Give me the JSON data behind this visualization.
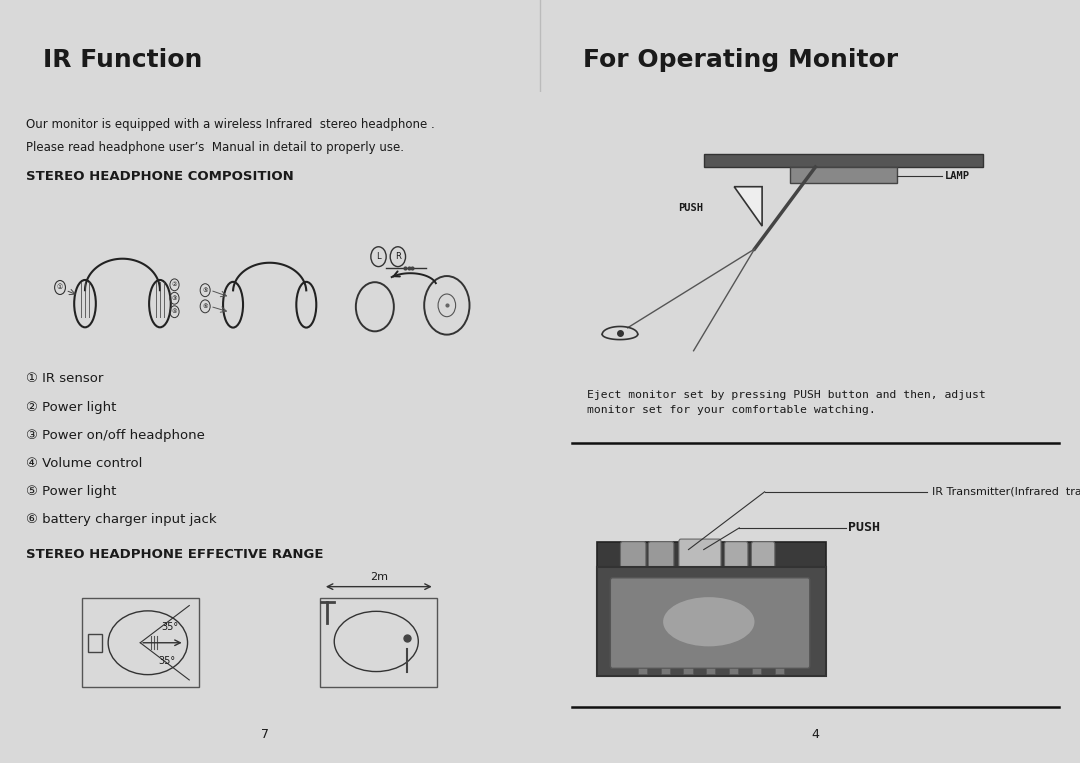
{
  "bg_color": "#d9d9d9",
  "page_bg": "#ffffff",
  "header_bg": "#d9d9d9",
  "header_left_title": "IR Function",
  "header_right_title": "For Operating Monitor",
  "header_title_color": "#1a1a1a",
  "header_title_fontsize": 18,
  "divider_color": "#aaaaaa",
  "left_intro_line1": "Our monitor is equipped with a wireless Infrared  stereo headphone .",
  "left_intro_line2": "Please read headphone user’s  Manual in detail to properly use.",
  "section1_title": "STEREO HEADPHONE COMPOSITION",
  "numbered_items": [
    "① IR sensor",
    "② Power light",
    "③ Power on/off headphone",
    "④ Volume control",
    "⑤ Power light",
    "⑥ battery charger input jack"
  ],
  "section2_title": "STEREO HEADPHONE EFFECTIVE RANGE",
  "page_num_left": "7",
  "page_num_right": "4",
  "right_caption": "Eject monitor set by pressing PUSH button and then, adjust\nmonitor set for your comfortable watching.",
  "ir_label": "IR Transmitter(Infrared  transmitter)",
  "push_label": "PUSH",
  "lamp_label": "LAMP",
  "push_label_top": "PUSH",
  "text_color": "#1a1a1a",
  "body_fontsize": 9,
  "section_fontsize": 9.5,
  "item_fontsize": 10
}
